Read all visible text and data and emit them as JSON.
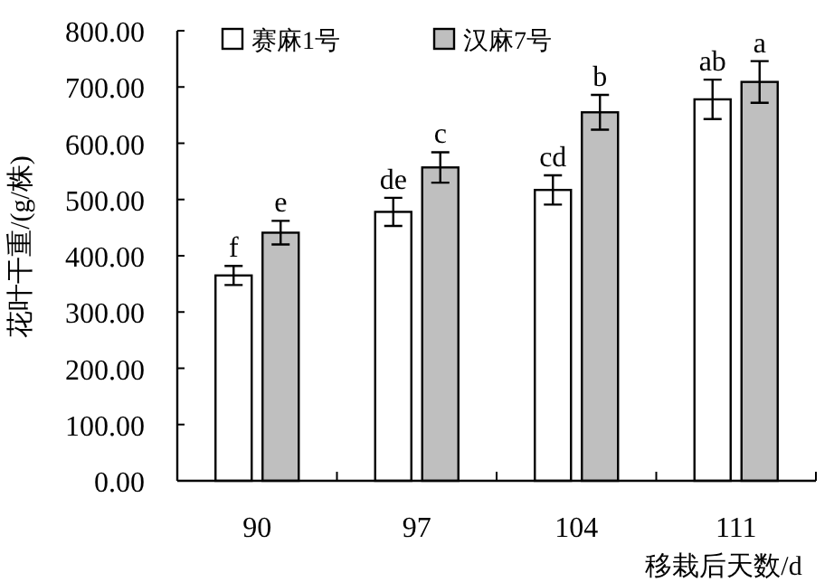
{
  "chart_data": {
    "type": "bar",
    "xlabel": "移栽后天数/d",
    "ylabel": "花叶干重/(g/株)",
    "categories": [
      "90",
      "97",
      "104",
      "111"
    ],
    "series": [
      {
        "name": "赛麻1号",
        "color": "#ffffff",
        "values": [
          365,
          478,
          517,
          678
        ],
        "errors": [
          17,
          25,
          26,
          35
        ]
      },
      {
        "name": "汉麻7号",
        "color": "#bfbfbf",
        "values": [
          441,
          557,
          655,
          709
        ],
        "errors": [
          21,
          27,
          31,
          37
        ]
      }
    ],
    "ylim": [
      0,
      800
    ],
    "yticks": [
      {
        "value": 0,
        "label": "0.00"
      },
      {
        "value": 100,
        "label": "100.00"
      },
      {
        "value": 200,
        "label": "200.00"
      },
      {
        "value": 300,
        "label": "300.00"
      },
      {
        "value": 400,
        "label": "400.00"
      },
      {
        "value": 500,
        "label": "500.00"
      },
      {
        "value": 600,
        "label": "600.00"
      },
      {
        "value": 700,
        "label": "700.00"
      },
      {
        "value": 800,
        "label": "800.00"
      }
    ],
    "legend": "top",
    "annotations": [
      "f",
      "e",
      "de",
      "c",
      "cd",
      "b",
      "ab",
      "a"
    ]
  }
}
